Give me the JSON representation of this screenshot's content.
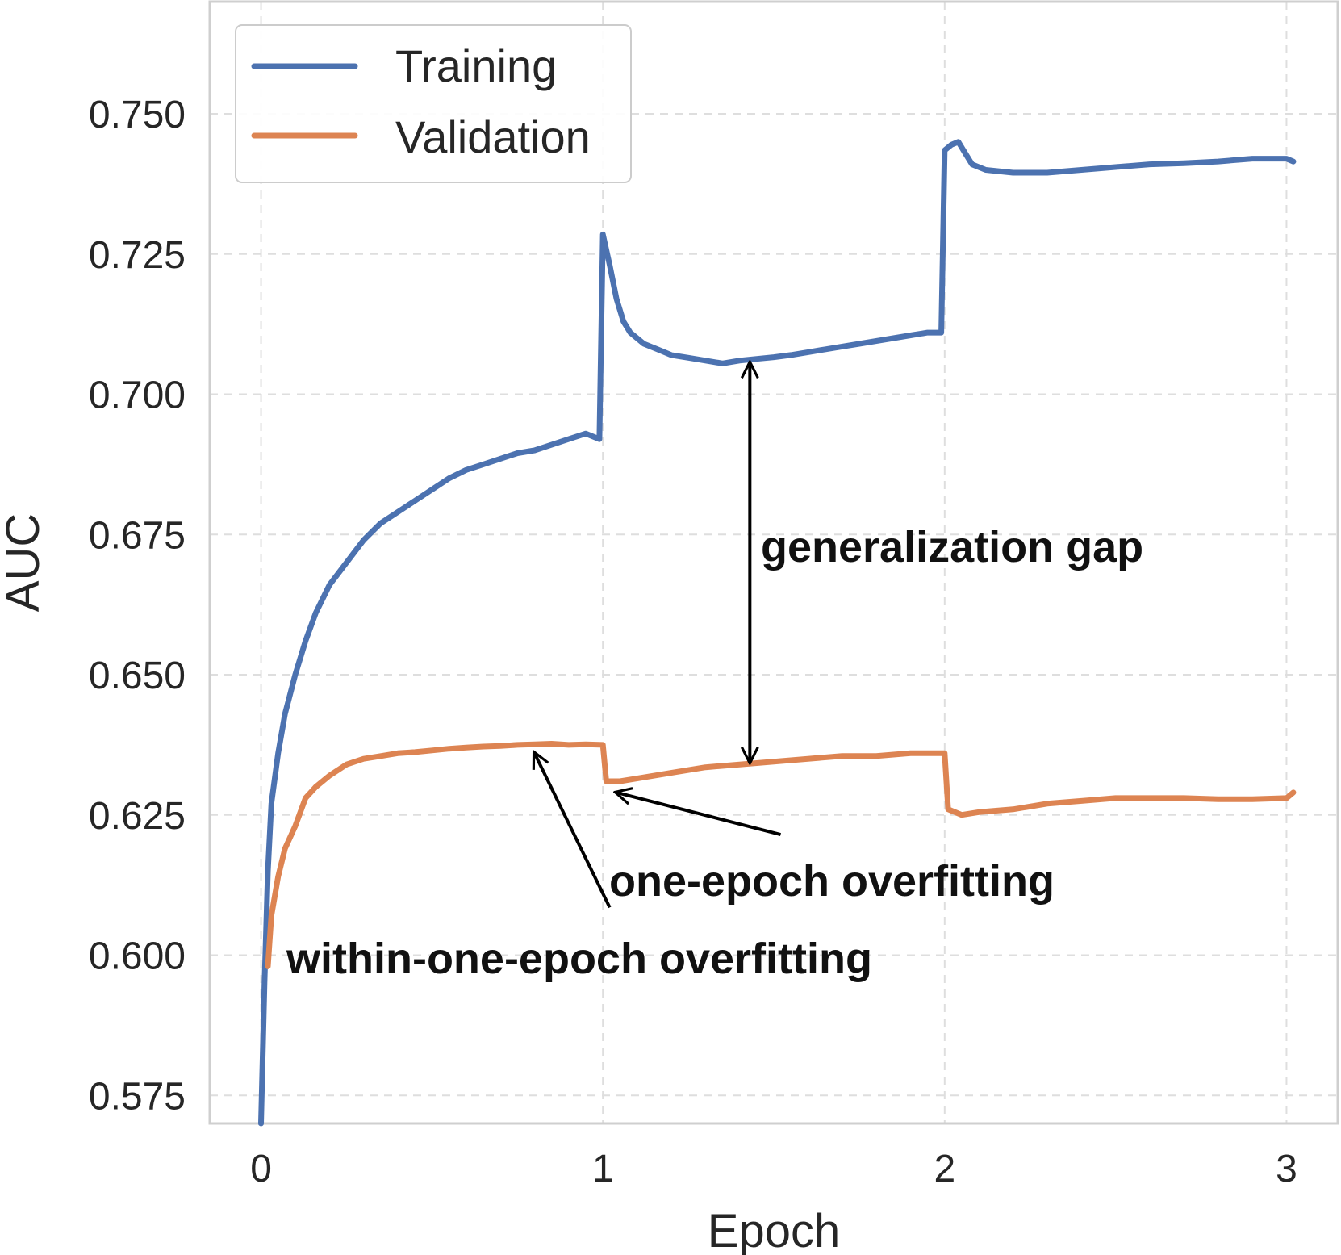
{
  "chart_data": {
    "type": "line",
    "xlabel": "Epoch",
    "ylabel": "AUC",
    "xlim": [
      -0.15,
      3.15
    ],
    "ylim": [
      0.57,
      0.77
    ],
    "x_ticks": [
      0,
      1,
      2,
      3
    ],
    "y_ticks": [
      0.575,
      0.6,
      0.625,
      0.65,
      0.675,
      0.7,
      0.725,
      0.75
    ],
    "x_tick_labels": [
      "0",
      "1",
      "2",
      "3"
    ],
    "y_tick_labels": [
      "0.575",
      "0.600",
      "0.625",
      "0.650",
      "0.675",
      "0.700",
      "0.725",
      "0.750"
    ],
    "grid": true,
    "legend_position": "top-left",
    "series": [
      {
        "name": "Training",
        "color": "#4c72b0",
        "points": [
          [
            0.0,
            0.57
          ],
          [
            0.01,
            0.595
          ],
          [
            0.02,
            0.615
          ],
          [
            0.03,
            0.627
          ],
          [
            0.05,
            0.636
          ],
          [
            0.07,
            0.643
          ],
          [
            0.1,
            0.65
          ],
          [
            0.13,
            0.656
          ],
          [
            0.16,
            0.661
          ],
          [
            0.2,
            0.666
          ],
          [
            0.25,
            0.67
          ],
          [
            0.3,
            0.674
          ],
          [
            0.35,
            0.677
          ],
          [
            0.4,
            0.679
          ],
          [
            0.45,
            0.681
          ],
          [
            0.5,
            0.683
          ],
          [
            0.55,
            0.685
          ],
          [
            0.6,
            0.6865
          ],
          [
            0.65,
            0.6875
          ],
          [
            0.7,
            0.6885
          ],
          [
            0.75,
            0.6895
          ],
          [
            0.8,
            0.69
          ],
          [
            0.85,
            0.691
          ],
          [
            0.9,
            0.692
          ],
          [
            0.95,
            0.693
          ],
          [
            0.99,
            0.692
          ],
          [
            1.0,
            0.7285
          ],
          [
            1.02,
            0.723
          ],
          [
            1.04,
            0.717
          ],
          [
            1.06,
            0.713
          ],
          [
            1.08,
            0.711
          ],
          [
            1.12,
            0.709
          ],
          [
            1.16,
            0.708
          ],
          [
            1.2,
            0.707
          ],
          [
            1.25,
            0.7065
          ],
          [
            1.3,
            0.706
          ],
          [
            1.35,
            0.7055
          ],
          [
            1.4,
            0.706
          ],
          [
            1.45,
            0.7063
          ],
          [
            1.5,
            0.7066
          ],
          [
            1.55,
            0.707
          ],
          [
            1.6,
            0.7075
          ],
          [
            1.65,
            0.708
          ],
          [
            1.7,
            0.7085
          ],
          [
            1.75,
            0.709
          ],
          [
            1.8,
            0.7095
          ],
          [
            1.85,
            0.71
          ],
          [
            1.9,
            0.7105
          ],
          [
            1.95,
            0.711
          ],
          [
            1.99,
            0.711
          ],
          [
            2.0,
            0.7435
          ],
          [
            2.02,
            0.7445
          ],
          [
            2.04,
            0.745
          ],
          [
            2.06,
            0.743
          ],
          [
            2.08,
            0.741
          ],
          [
            2.12,
            0.74
          ],
          [
            2.2,
            0.7395
          ],
          [
            2.3,
            0.7395
          ],
          [
            2.4,
            0.74
          ],
          [
            2.5,
            0.7405
          ],
          [
            2.6,
            0.741
          ],
          [
            2.7,
            0.7412
          ],
          [
            2.8,
            0.7415
          ],
          [
            2.9,
            0.742
          ],
          [
            3.0,
            0.742
          ],
          [
            3.02,
            0.7415
          ]
        ]
      },
      {
        "name": "Validation",
        "color": "#dd8452",
        "points": [
          [
            0.02,
            0.598
          ],
          [
            0.03,
            0.607
          ],
          [
            0.05,
            0.614
          ],
          [
            0.07,
            0.619
          ],
          [
            0.1,
            0.623
          ],
          [
            0.13,
            0.628
          ],
          [
            0.16,
            0.63
          ],
          [
            0.2,
            0.632
          ],
          [
            0.25,
            0.634
          ],
          [
            0.3,
            0.635
          ],
          [
            0.35,
            0.6355
          ],
          [
            0.4,
            0.636
          ],
          [
            0.45,
            0.6362
          ],
          [
            0.5,
            0.6365
          ],
          [
            0.55,
            0.6368
          ],
          [
            0.6,
            0.637
          ],
          [
            0.65,
            0.6372
          ],
          [
            0.7,
            0.6373
          ],
          [
            0.75,
            0.6375
          ],
          [
            0.8,
            0.6376
          ],
          [
            0.85,
            0.6377
          ],
          [
            0.9,
            0.6375
          ],
          [
            0.95,
            0.6376
          ],
          [
            1.0,
            0.6375
          ],
          [
            1.01,
            0.631
          ],
          [
            1.05,
            0.631
          ],
          [
            1.1,
            0.6315
          ],
          [
            1.2,
            0.6325
          ],
          [
            1.3,
            0.6335
          ],
          [
            1.4,
            0.634
          ],
          [
            1.5,
            0.6345
          ],
          [
            1.6,
            0.635
          ],
          [
            1.7,
            0.6355
          ],
          [
            1.8,
            0.6355
          ],
          [
            1.9,
            0.636
          ],
          [
            2.0,
            0.636
          ],
          [
            2.01,
            0.626
          ],
          [
            2.05,
            0.625
          ],
          [
            2.1,
            0.6255
          ],
          [
            2.2,
            0.626
          ],
          [
            2.3,
            0.627
          ],
          [
            2.4,
            0.6275
          ],
          [
            2.5,
            0.628
          ],
          [
            2.6,
            0.628
          ],
          [
            2.7,
            0.628
          ],
          [
            2.8,
            0.6278
          ],
          [
            2.9,
            0.6278
          ],
          [
            3.0,
            0.628
          ],
          [
            3.02,
            0.629
          ]
        ]
      }
    ],
    "annotations": [
      {
        "text": "generalization gap",
        "arrow": "double",
        "from": [
          1.43,
          0.7055
        ],
        "to": [
          1.43,
          0.6345
        ]
      },
      {
        "text": "one-epoch overfitting",
        "arrow": "single",
        "from": [
          1.52,
          0.6215
        ],
        "to": [
          1.04,
          0.629
        ]
      },
      {
        "text": "within-one-epoch overfitting",
        "arrow": "single",
        "from": [
          1.02,
          0.6085
        ],
        "to": [
          0.8,
          0.636
        ]
      }
    ]
  }
}
